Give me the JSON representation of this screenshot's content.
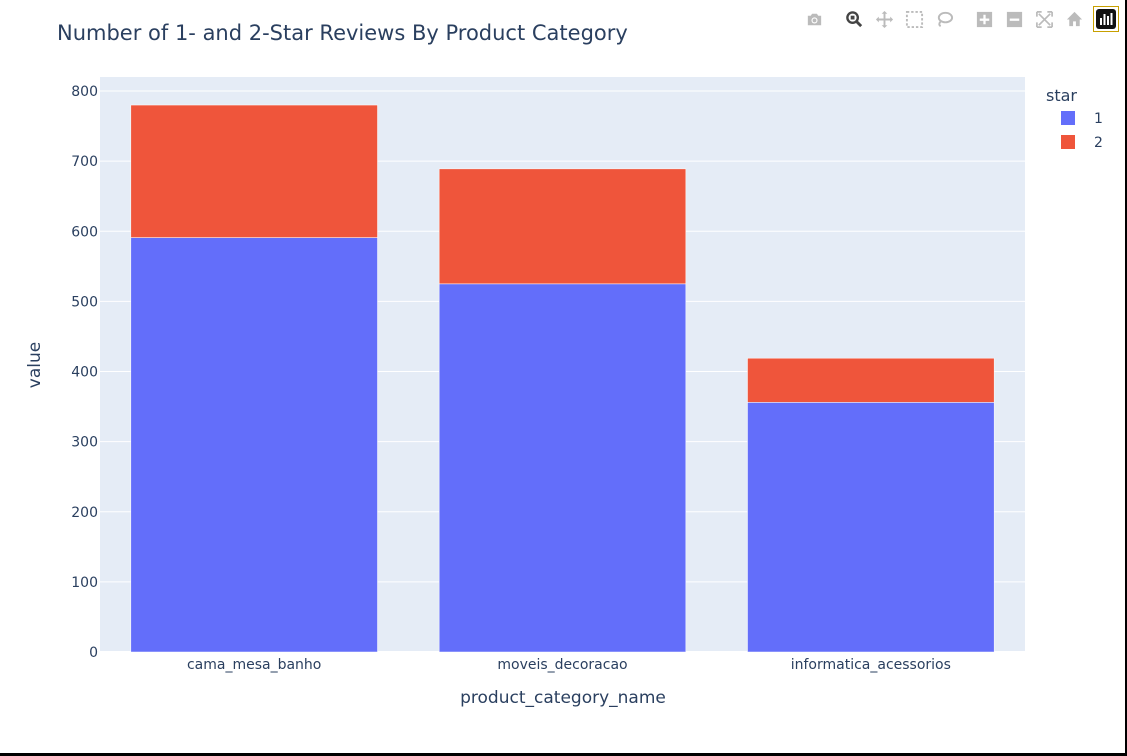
{
  "chart_data": {
    "type": "bar",
    "barmode": "stack",
    "title": "Number of 1- and 2-Star Reviews By Product Category",
    "xlabel": "product_category_name",
    "ylabel": "value",
    "categories": [
      "cama_mesa_banho",
      "moveis_decoracao",
      "informatica_acessorios"
    ],
    "series": [
      {
        "name": "1",
        "color": "#636efa",
        "values": [
          591,
          525,
          356
        ]
      },
      {
        "name": "2",
        "color": "#ef553b",
        "values": [
          189,
          164,
          63
        ]
      }
    ],
    "ylim": [
      0,
      820
    ],
    "yticks": [
      0,
      100,
      200,
      300,
      400,
      500,
      600,
      700,
      800
    ],
    "legend_title": "star",
    "legend_position": "top-right",
    "grid": true
  },
  "modebar": {
    "buttons": [
      "camera-icon",
      "zoom-icon",
      "pan-icon",
      "box-select-icon",
      "lasso-select-icon",
      "zoom-in-icon",
      "zoom-out-icon",
      "autoscale-icon",
      "reset-axes-icon",
      "plotly-logo-icon"
    ]
  },
  "colors": {
    "plot_bg": "#e5ecf6",
    "text": "#2a3f5f",
    "grid": "#ffffff"
  }
}
